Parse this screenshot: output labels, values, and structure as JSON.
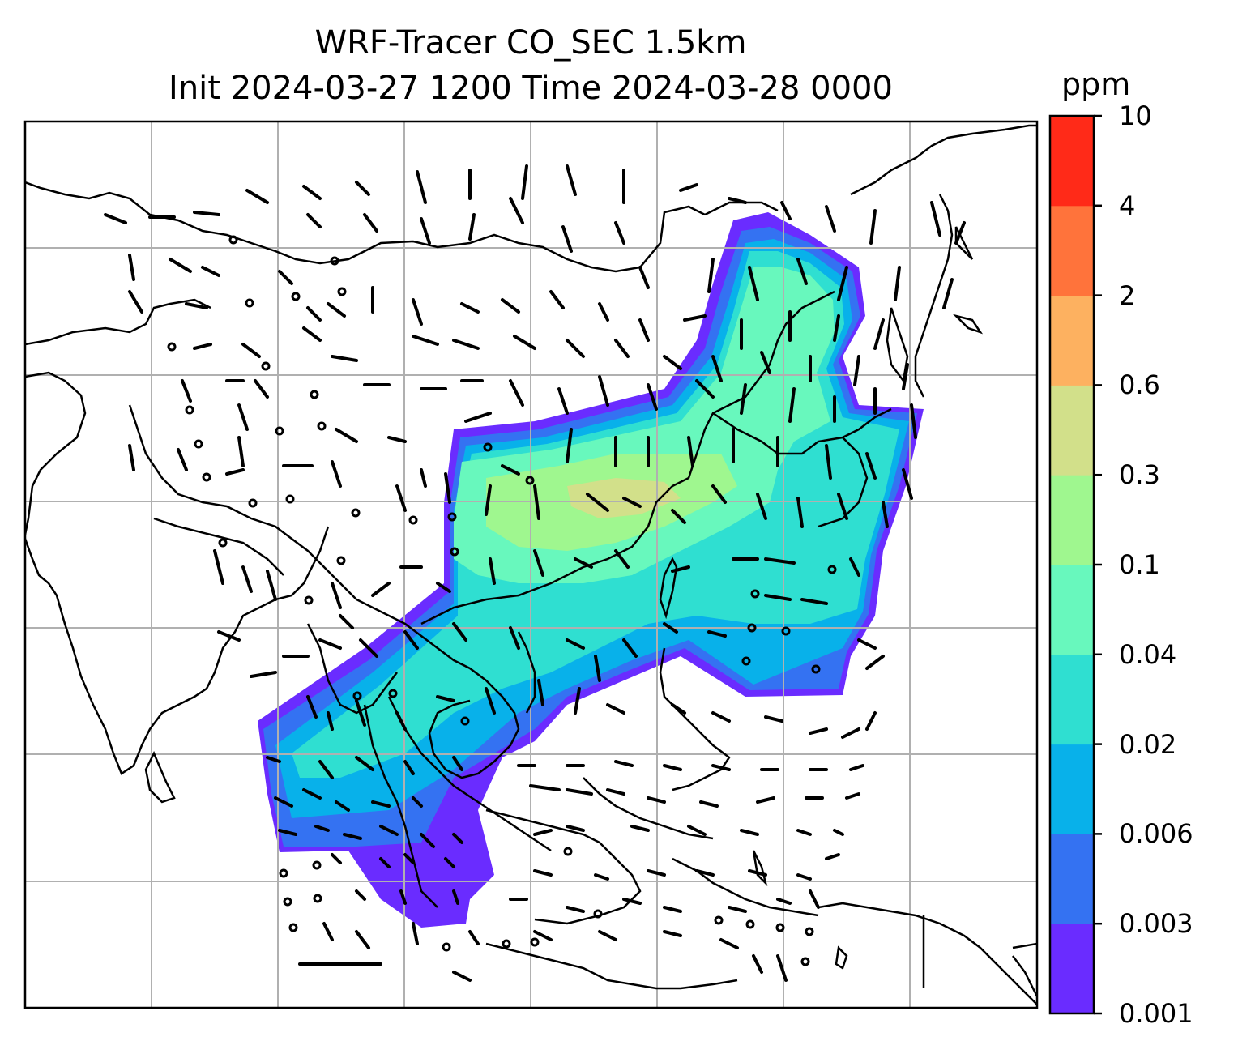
{
  "title": {
    "line1": "WRF-Tracer CO_SEC 1.5km",
    "line2": "Init 2024-03-27 1200 Time 2024-03-28 0000"
  },
  "colorbar": {
    "unit": "ppm",
    "levels": [
      "0.001",
      "0.003",
      "0.006",
      "0.02",
      "0.04",
      "0.1",
      "0.3",
      "0.6",
      "2",
      "4",
      "10"
    ],
    "colors": [
      "#6a2cff",
      "#3472f2",
      "#08b1ea",
      "#2fdfd1",
      "#68f8bd",
      "#9ff78f",
      "#d2e08a",
      "#fdb160",
      "#ff733b",
      "#ff2a18"
    ]
  },
  "map": {
    "gridlines": "on",
    "barb_color": "#000000",
    "coastline_color": "#000000"
  }
}
